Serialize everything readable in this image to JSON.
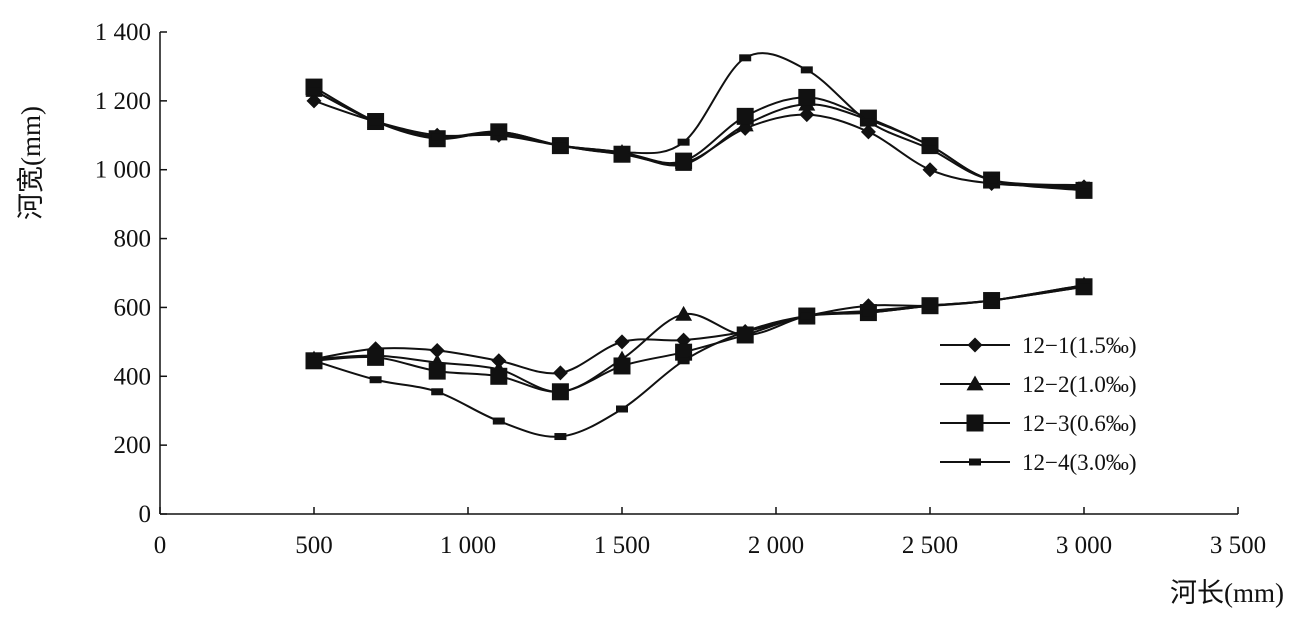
{
  "chart_data": {
    "type": "line",
    "title": "",
    "xlabel": "河长(mm)",
    "ylabel": "河宽(mm)",
    "xlim": [
      0,
      3500
    ],
    "ylim": [
      0,
      1400
    ],
    "xticks": [
      0,
      500,
      1000,
      1500,
      2000,
      2500,
      3000,
      3500
    ],
    "yticks": [
      0,
      200,
      400,
      600,
      800,
      1000,
      1200,
      1400
    ],
    "xtick_labels": [
      "0",
      "500",
      "1 000",
      "1 500",
      "2 000",
      "2 500",
      "3 000",
      "3 500"
    ],
    "ytick_labels": [
      "0",
      "200",
      "400",
      "600",
      "800",
      "1 000",
      "1 200",
      "1 400"
    ],
    "grid": false,
    "legend_position": "right",
    "series": [
      {
        "name": "12−1(1.5‰)",
        "marker": "diamond",
        "x": [
          500,
          700,
          900,
          1100,
          1300,
          1500,
          1700,
          1900,
          2100,
          2300,
          2500,
          2700,
          3000
        ],
        "upper": [
          1200,
          1140,
          1100,
          1100,
          1070,
          1050,
          1020,
          1120,
          1160,
          1110,
          1000,
          960,
          950
        ],
        "lower": [
          450,
          480,
          475,
          445,
          410,
          500,
          505,
          530,
          575,
          605,
          605,
          620,
          665
        ]
      },
      {
        "name": "12−2(1.0‰)",
        "marker": "triangle",
        "x": [
          500,
          700,
          900,
          1100,
          1300,
          1500,
          1700,
          1900,
          2100,
          2300,
          2500,
          2700,
          3000
        ],
        "upper": [
          1230,
          1140,
          1095,
          1105,
          1070,
          1050,
          1015,
          1130,
          1190,
          1145,
          1070,
          970,
          945
        ],
        "lower": [
          450,
          460,
          440,
          420,
          355,
          450,
          580,
          520,
          575,
          590,
          605,
          620,
          665
        ]
      },
      {
        "name": "12−3(0.6‰)",
        "marker": "square",
        "x": [
          500,
          700,
          900,
          1100,
          1300,
          1500,
          1700,
          1900,
          2100,
          2300,
          2500,
          2700,
          3000
        ],
        "upper": [
          1240,
          1140,
          1090,
          1110,
          1070,
          1045,
          1025,
          1155,
          1210,
          1150,
          1070,
          970,
          940
        ],
        "lower": [
          445,
          455,
          415,
          400,
          355,
          430,
          470,
          520,
          575,
          585,
          605,
          620,
          660
        ]
      },
      {
        "name": "12−4(3.0‰)",
        "marker": "small-square",
        "x": [
          500,
          700,
          900,
          1100,
          1300,
          1500,
          1700,
          1900,
          2100,
          2300,
          2500,
          2700,
          3000
        ],
        "upper": [
          1230,
          1140,
          1095,
          1110,
          1070,
          1050,
          1080,
          1325,
          1290,
          1140,
          1060,
          970,
          955
        ],
        "lower": [
          445,
          390,
          355,
          270,
          225,
          305,
          445,
          530,
          575,
          585,
          605,
          620,
          660
        ]
      }
    ]
  },
  "colors": {
    "line": "#111111",
    "background": "#ffffff"
  }
}
